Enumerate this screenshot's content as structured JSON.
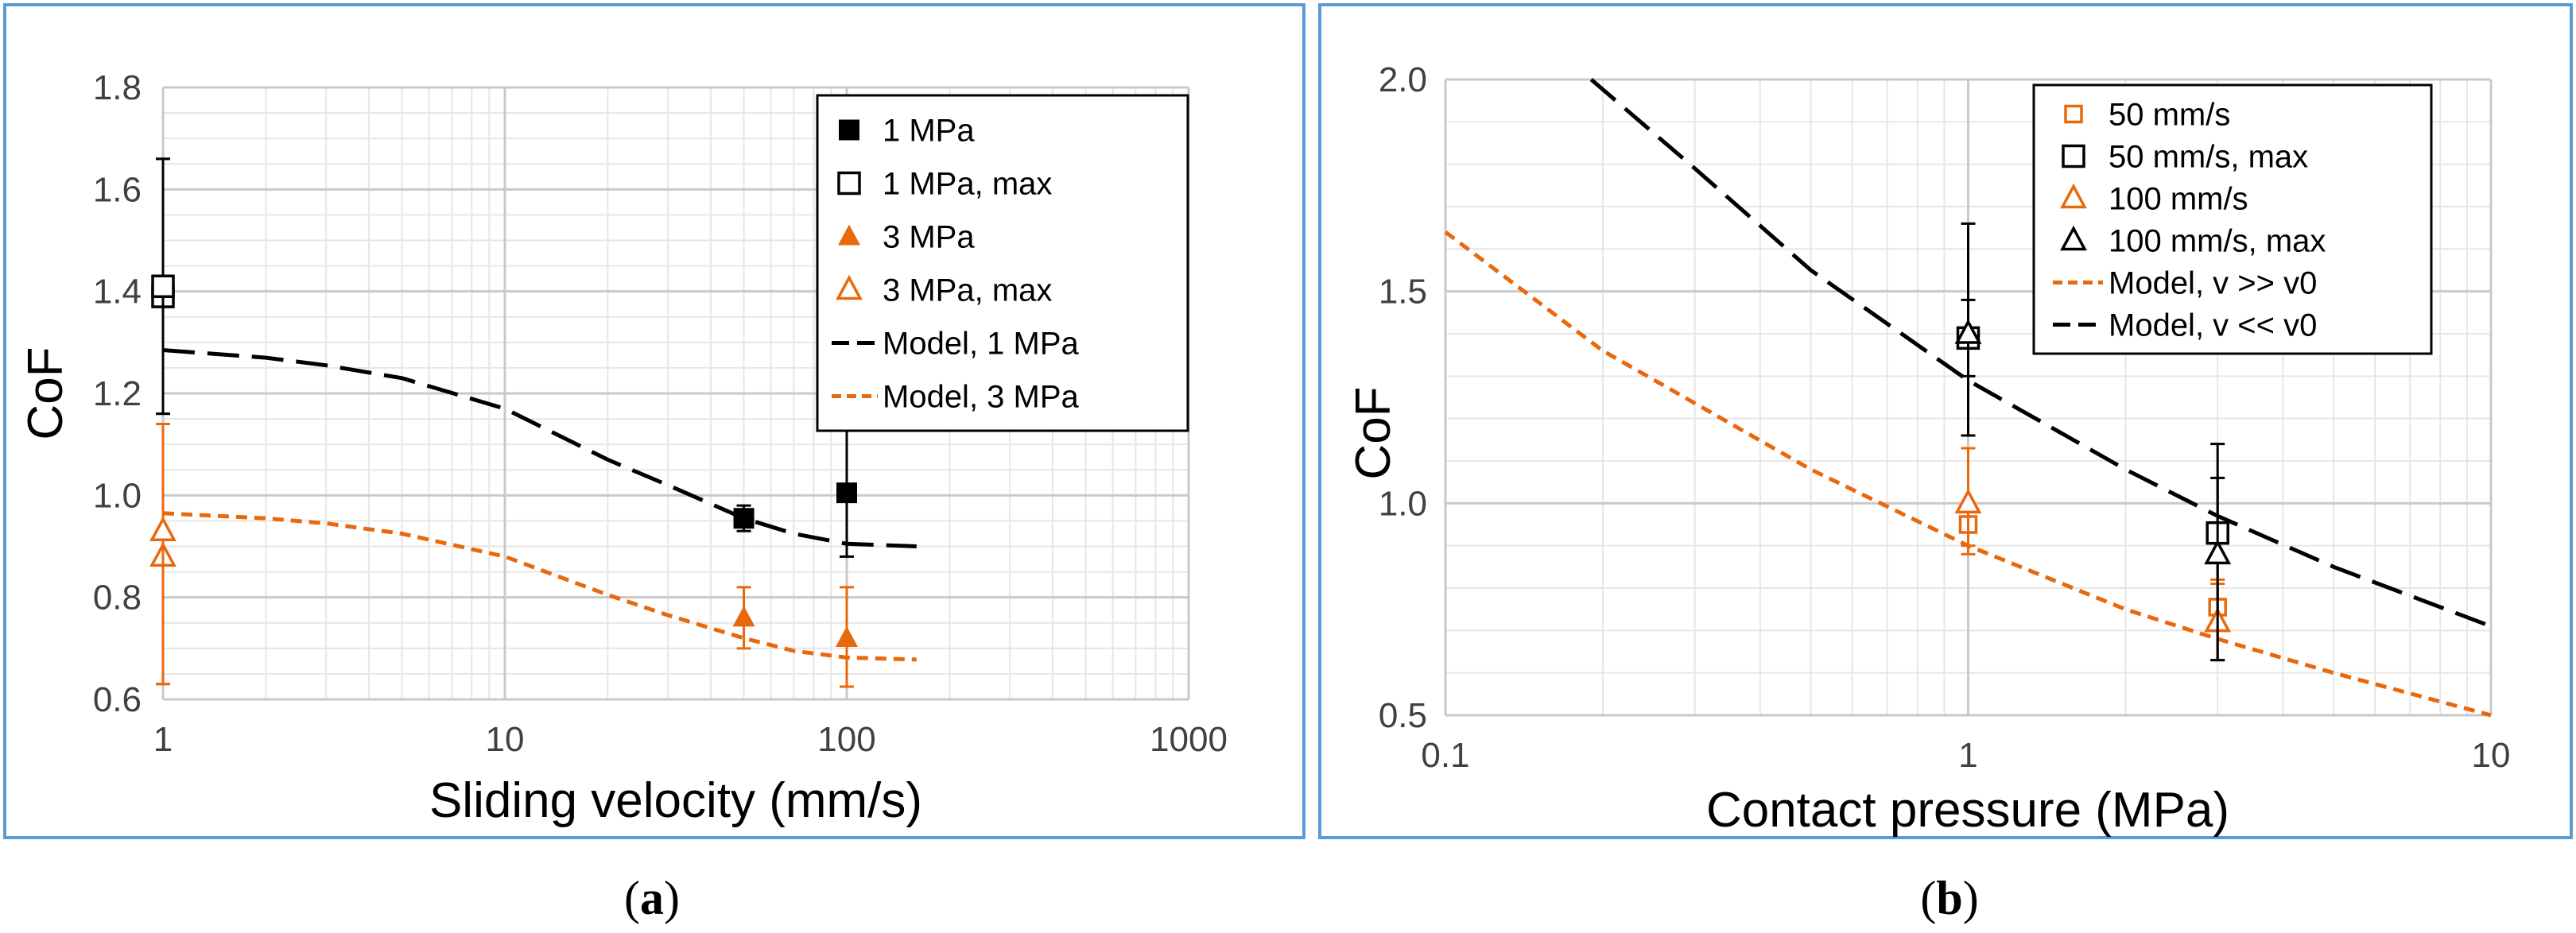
{
  "panels": [
    {
      "caption_open": "(",
      "caption_letter": "a",
      "caption_close": ")"
    },
    {
      "caption_open": "(",
      "caption_letter": "b",
      "caption_close": ")"
    }
  ],
  "chart_data": [
    {
      "type": "scatter",
      "xscale": "log",
      "xlabel": "Sliding velocity (mm/s)",
      "ylabel": "CoF",
      "xlim": [
        1,
        1000
      ],
      "ylim": [
        0.6,
        1.8
      ],
      "xticks": [
        1,
        10,
        100,
        1000
      ],
      "xtick_labels": [
        "1",
        "10",
        "100",
        "1000"
      ],
      "yticks": [
        0.6,
        0.8,
        1.0,
        1.2,
        1.4,
        1.6,
        1.8
      ],
      "ytick_labels": [
        "0.6",
        "0.8",
        "1.0",
        "1.2",
        "1.4",
        "1.6",
        "1.8"
      ],
      "grid": true,
      "legend_position": "top-right",
      "series": [
        {
          "name": "1 MPa",
          "kind": "points",
          "marker": "square-filled",
          "color": "#000000",
          "points": [
            {
              "x": 50,
              "y": 0.955,
              "lo": 0.93,
              "hi": 0.98
            },
            {
              "x": 100,
              "y": 1.005,
              "lo": 0.88,
              "hi": 1.13
            }
          ]
        },
        {
          "name": "1 MPa, max",
          "kind": "points",
          "marker": "square-open",
          "color": "#000000",
          "points": [
            {
              "x": 1,
              "y": 1.39,
              "lo": 1.16,
              "hi": 1.66
            },
            {
              "x": 1,
              "y": 1.41,
              "lo": 1.16,
              "hi": 1.66
            }
          ]
        },
        {
          "name": "3 MPa",
          "kind": "points",
          "marker": "triangle-filled",
          "color": "#E8690C",
          "points": [
            {
              "x": 50,
              "y": 0.76,
              "lo": 0.7,
              "hi": 0.82
            },
            {
              "x": 100,
              "y": 0.72,
              "lo": 0.625,
              "hi": 0.82
            }
          ]
        },
        {
          "name": "3 MPa, max",
          "kind": "points",
          "marker": "triangle-open",
          "color": "#E8690C",
          "points": [
            {
              "x": 1,
              "y": 0.88,
              "lo": 0.63,
              "hi": 1.14
            },
            {
              "x": 1,
              "y": 0.93,
              "lo": 0.63,
              "hi": 1.14
            }
          ]
        },
        {
          "name": "Model, 1 MPa",
          "kind": "line",
          "style": "longdash",
          "color": "#000000",
          "x": [
            1,
            2,
            3,
            5,
            10,
            20,
            30,
            50,
            70,
            100,
            160
          ],
          "y": [
            1.285,
            1.27,
            1.255,
            1.23,
            1.17,
            1.07,
            1.02,
            0.955,
            0.925,
            0.905,
            0.9
          ]
        },
        {
          "name": "Model, 3 MPa",
          "kind": "line",
          "style": "shortdash",
          "color": "#E8690C",
          "x": [
            1,
            2,
            3,
            5,
            10,
            20,
            30,
            50,
            70,
            100,
            160
          ],
          "y": [
            0.965,
            0.955,
            0.945,
            0.925,
            0.88,
            0.805,
            0.765,
            0.72,
            0.695,
            0.682,
            0.678
          ]
        }
      ]
    },
    {
      "type": "scatter",
      "xscale": "log",
      "xlabel": "Contact pressure (MPa)",
      "ylabel": "CoF",
      "xlim": [
        0.1,
        10
      ],
      "ylim": [
        0.5,
        2.0
      ],
      "xticks": [
        0.1,
        1,
        10
      ],
      "xtick_labels": [
        "0.1",
        "1",
        "10"
      ],
      "yticks": [
        0.5,
        1.0,
        1.5,
        2.0
      ],
      "ytick_labels": [
        "0.5",
        "1.0",
        "1.5",
        "2.0"
      ],
      "grid": true,
      "legend_position": "top-right",
      "series": [
        {
          "name": "50 mm/s",
          "kind": "points",
          "marker": "square-open-small",
          "color": "#E8690C",
          "points": [
            {
              "x": 1,
              "y": 0.95,
              "lo": 0.9,
              "hi": 1.0
            },
            {
              "x": 3,
              "y": 0.755,
              "lo": 0.7,
              "hi": 0.81
            }
          ]
        },
        {
          "name": "50 mm/s, max",
          "kind": "points",
          "marker": "square-open",
          "color": "#000000",
          "points": [
            {
              "x": 1,
              "y": 1.39,
              "lo": 1.16,
              "hi": 1.66
            },
            {
              "x": 3,
              "y": 0.93,
              "lo": 0.63,
              "hi": 1.14
            }
          ]
        },
        {
          "name": "100 mm/s",
          "kind": "points",
          "marker": "triangle-open",
          "color": "#E8690C",
          "points": [
            {
              "x": 1,
              "y": 1.0,
              "lo": 0.88,
              "hi": 1.13
            },
            {
              "x": 3,
              "y": 0.72,
              "lo": 0.63,
              "hi": 0.82
            }
          ]
        },
        {
          "name": "100 mm/s, max",
          "kind": "points",
          "marker": "triangle-open",
          "color": "#000000",
          "points": [
            {
              "x": 1,
              "y": 1.4,
              "lo": 1.3,
              "hi": 1.48
            },
            {
              "x": 3,
              "y": 0.88,
              "lo": 0.63,
              "hi": 1.06
            }
          ]
        },
        {
          "name": "Model, v >> v0",
          "kind": "line",
          "style": "shortdash",
          "color": "#E8690C",
          "x": [
            0.1,
            0.2,
            0.5,
            1,
            2,
            3,
            5,
            10
          ],
          "y": [
            1.64,
            1.36,
            1.08,
            0.9,
            0.75,
            0.68,
            0.6,
            0.5
          ]
        },
        {
          "name": "Model, v << v0",
          "kind": "line",
          "style": "longdash",
          "color": "#000000",
          "x": [
            0.19,
            0.3,
            0.5,
            1,
            2,
            3,
            5,
            10
          ],
          "y": [
            2.0,
            1.79,
            1.55,
            1.29,
            1.08,
            0.97,
            0.85,
            0.71
          ]
        }
      ]
    }
  ]
}
